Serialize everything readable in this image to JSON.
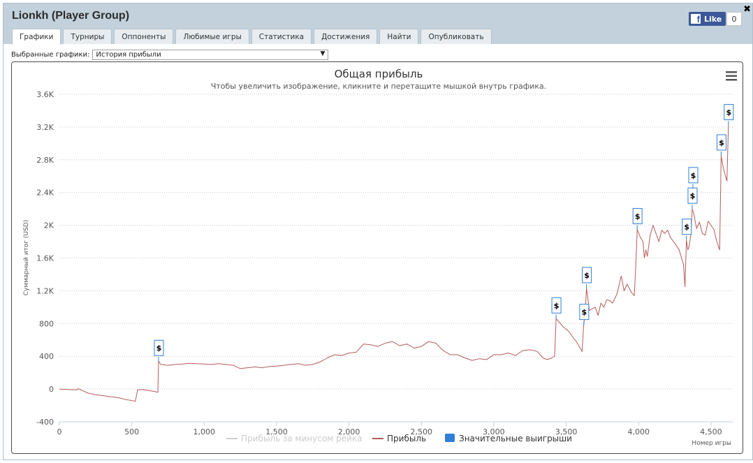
{
  "app": {
    "title": "Lionkh (Player Group)",
    "close_label": "✖"
  },
  "facebook": {
    "like_label": "Like",
    "count": "0"
  },
  "tabs": [
    {
      "label": "Графики",
      "active": true
    },
    {
      "label": "Турниры"
    },
    {
      "label": "Оппоненты"
    },
    {
      "label": "Любимые игры"
    },
    {
      "label": "Статистика"
    },
    {
      "label": "Достижения"
    },
    {
      "label": "Найти"
    },
    {
      "label": "Опубликовать"
    }
  ],
  "graph_selector": {
    "label": "Выбранные графики:",
    "value": "История прибыли",
    "arrow": "▼"
  },
  "chart_data": {
    "type": "line",
    "title": "Общая прибыль",
    "subtitle": "Чтобы увеличить изображение, кликните и перетащите мышкой внутрь графика.",
    "xlabel": "Номер игры",
    "ylabel": "Суммарный итог (USD)",
    "xlim": [
      0,
      4650
    ],
    "ylim": [
      -400,
      3600
    ],
    "x_ticks": [
      "0",
      "500",
      "1,000",
      "1,500",
      "2,000",
      "2,500",
      "3,000",
      "3,500",
      "4,000",
      "4,500"
    ],
    "y_ticks": [
      "-400",
      "0",
      "400",
      "800",
      "1.2K",
      "1.6K",
      "2K",
      "2.4K",
      "2.8K",
      "3.2K",
      "3.6K"
    ],
    "grid": true,
    "legend_placement": "bottom",
    "legend": [
      {
        "name": "Прибыль за минусом рейка",
        "color": "#cccccc",
        "symbol": "line"
      },
      {
        "name": "Прибыль",
        "color": "#b55a5a",
        "symbol": "line"
      },
      {
        "name": "Значительные выигрыши",
        "color": "#2f7ed8",
        "symbol": "square"
      }
    ],
    "series": [
      {
        "name": "Прибыль",
        "color": "#b55a5a",
        "points": [
          [
            0,
            0
          ],
          [
            60,
            -5
          ],
          [
            120,
            -10
          ],
          [
            130,
            5
          ],
          [
            160,
            -20
          ],
          [
            200,
            -50
          ],
          [
            250,
            -70
          ],
          [
            300,
            -80
          ],
          [
            340,
            -90
          ],
          [
            380,
            -100
          ],
          [
            420,
            -110
          ],
          [
            460,
            -130
          ],
          [
            500,
            -140
          ],
          [
            525,
            -150
          ],
          [
            540,
            -10
          ],
          [
            580,
            -5
          ],
          [
            620,
            -20
          ],
          [
            660,
            -30
          ],
          [
            680,
            -40
          ],
          [
            685,
            340
          ],
          [
            700,
            300
          ],
          [
            750,
            290
          ],
          [
            800,
            300
          ],
          [
            850,
            305
          ],
          [
            900,
            315
          ],
          [
            950,
            310
          ],
          [
            1000,
            305
          ],
          [
            1050,
            300
          ],
          [
            1100,
            310
          ],
          [
            1150,
            300
          ],
          [
            1200,
            290
          ],
          [
            1250,
            250
          ],
          [
            1300,
            260
          ],
          [
            1350,
            270
          ],
          [
            1400,
            260
          ],
          [
            1450,
            275
          ],
          [
            1500,
            280
          ],
          [
            1550,
            290
          ],
          [
            1600,
            300
          ],
          [
            1650,
            310
          ],
          [
            1700,
            290
          ],
          [
            1750,
            300
          ],
          [
            1800,
            330
          ],
          [
            1850,
            380
          ],
          [
            1900,
            420
          ],
          [
            1950,
            410
          ],
          [
            2000,
            440
          ],
          [
            2050,
            450
          ],
          [
            2100,
            550
          ],
          [
            2150,
            540
          ],
          [
            2200,
            520
          ],
          [
            2250,
            560
          ],
          [
            2300,
            580
          ],
          [
            2350,
            530
          ],
          [
            2400,
            550
          ],
          [
            2450,
            500
          ],
          [
            2500,
            520
          ],
          [
            2550,
            580
          ],
          [
            2600,
            560
          ],
          [
            2650,
            470
          ],
          [
            2700,
            420
          ],
          [
            2750,
            420
          ],
          [
            2800,
            380
          ],
          [
            2850,
            350
          ],
          [
            2900,
            370
          ],
          [
            2950,
            360
          ],
          [
            3000,
            420
          ],
          [
            3050,
            420
          ],
          [
            3100,
            440
          ],
          [
            3150,
            410
          ],
          [
            3200,
            470
          ],
          [
            3250,
            480
          ],
          [
            3300,
            460
          ],
          [
            3340,
            380
          ],
          [
            3370,
            360
          ],
          [
            3400,
            380
          ],
          [
            3420,
            400
          ],
          [
            3430,
            860
          ],
          [
            3480,
            760
          ],
          [
            3520,
            700
          ],
          [
            3550,
            620
          ],
          [
            3570,
            580
          ],
          [
            3590,
            520
          ],
          [
            3610,
            460
          ],
          [
            3620,
            780
          ],
          [
            3630,
            900
          ],
          [
            3640,
            1230
          ],
          [
            3660,
            960
          ],
          [
            3700,
            1000
          ],
          [
            3720,
            900
          ],
          [
            3740,
            1050
          ],
          [
            3760,
            1000
          ],
          [
            3780,
            1090
          ],
          [
            3800,
            1080
          ],
          [
            3820,
            1050
          ],
          [
            3850,
            1160
          ],
          [
            3880,
            1380
          ],
          [
            3900,
            1200
          ],
          [
            3920,
            1280
          ],
          [
            3950,
            1180
          ],
          [
            3970,
            1140
          ],
          [
            3980,
            1480
          ],
          [
            3990,
            1950
          ],
          [
            4010,
            1860
          ],
          [
            4030,
            1800
          ],
          [
            4040,
            1600
          ],
          [
            4050,
            1700
          ],
          [
            4060,
            1620
          ],
          [
            4080,
            1880
          ],
          [
            4100,
            2000
          ],
          [
            4120,
            1900
          ],
          [
            4140,
            1800
          ],
          [
            4160,
            1940
          ],
          [
            4180,
            1900
          ],
          [
            4200,
            1940
          ],
          [
            4220,
            1850
          ],
          [
            4250,
            1780
          ],
          [
            4280,
            1700
          ],
          [
            4310,
            1520
          ],
          [
            4320,
            1250
          ],
          [
            4330,
            1820
          ],
          [
            4340,
            1700
          ],
          [
            4350,
            1750
          ],
          [
            4360,
            1880
          ],
          [
            4370,
            2200
          ],
          [
            4380,
            2150
          ],
          [
            4400,
            1960
          ],
          [
            4420,
            2040
          ],
          [
            4440,
            1900
          ],
          [
            4460,
            1880
          ],
          [
            4480,
            2050
          ],
          [
            4500,
            2000
          ],
          [
            4520,
            1950
          ],
          [
            4540,
            1800
          ],
          [
            4560,
            1700
          ],
          [
            4570,
            2850
          ],
          [
            4585,
            2700
          ],
          [
            4600,
            2600
          ],
          [
            4610,
            2540
          ],
          [
            4620,
            3220
          ]
        ]
      }
    ],
    "big_wins": [
      {
        "x": 685,
        "y": 340
      },
      {
        "x": 3430,
        "y": 860
      },
      {
        "x": 3622,
        "y": 780
      },
      {
        "x": 3640,
        "y": 1230
      },
      {
        "x": 3990,
        "y": 1950
      },
      {
        "x": 4330,
        "y": 1820
      },
      {
        "x": 4370,
        "y": 2200
      },
      {
        "x": 4375,
        "y": 2450
      },
      {
        "x": 4570,
        "y": 2850
      },
      {
        "x": 4620,
        "y": 3220
      }
    ],
    "flag_text": "$"
  }
}
